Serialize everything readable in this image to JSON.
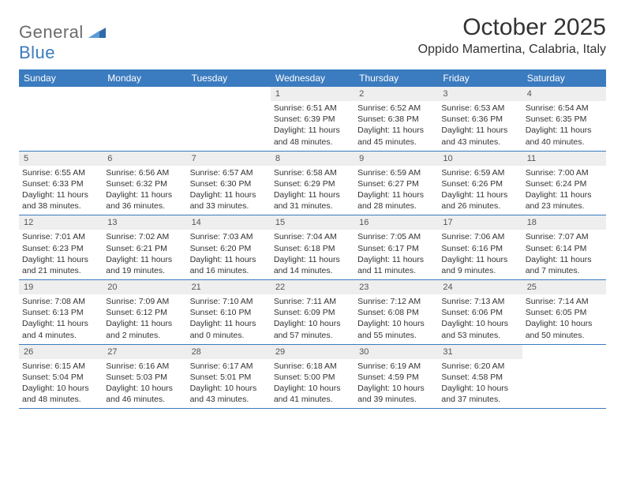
{
  "logo": {
    "word1": "General",
    "word2": "Blue"
  },
  "title": "October 2025",
  "location": "Oppido Mamertina, Calabria, Italy",
  "calendar": {
    "header_bg": "#3b7bbf",
    "header_fg": "#ffffff",
    "daynum_bg": "#eeeeee",
    "border_color": "#3b7bbf",
    "weekdays": [
      "Sunday",
      "Monday",
      "Tuesday",
      "Wednesday",
      "Thursday",
      "Friday",
      "Saturday"
    ],
    "weeks": [
      [
        {
          "day": "",
          "sunrise": "",
          "sunset": "",
          "daylight": ""
        },
        {
          "day": "",
          "sunrise": "",
          "sunset": "",
          "daylight": ""
        },
        {
          "day": "",
          "sunrise": "",
          "sunset": "",
          "daylight": ""
        },
        {
          "day": "1",
          "sunrise": "Sunrise: 6:51 AM",
          "sunset": "Sunset: 6:39 PM",
          "daylight": "Daylight: 11 hours and 48 minutes."
        },
        {
          "day": "2",
          "sunrise": "Sunrise: 6:52 AM",
          "sunset": "Sunset: 6:38 PM",
          "daylight": "Daylight: 11 hours and 45 minutes."
        },
        {
          "day": "3",
          "sunrise": "Sunrise: 6:53 AM",
          "sunset": "Sunset: 6:36 PM",
          "daylight": "Daylight: 11 hours and 43 minutes."
        },
        {
          "day": "4",
          "sunrise": "Sunrise: 6:54 AM",
          "sunset": "Sunset: 6:35 PM",
          "daylight": "Daylight: 11 hours and 40 minutes."
        }
      ],
      [
        {
          "day": "5",
          "sunrise": "Sunrise: 6:55 AM",
          "sunset": "Sunset: 6:33 PM",
          "daylight": "Daylight: 11 hours and 38 minutes."
        },
        {
          "day": "6",
          "sunrise": "Sunrise: 6:56 AM",
          "sunset": "Sunset: 6:32 PM",
          "daylight": "Daylight: 11 hours and 36 minutes."
        },
        {
          "day": "7",
          "sunrise": "Sunrise: 6:57 AM",
          "sunset": "Sunset: 6:30 PM",
          "daylight": "Daylight: 11 hours and 33 minutes."
        },
        {
          "day": "8",
          "sunrise": "Sunrise: 6:58 AM",
          "sunset": "Sunset: 6:29 PM",
          "daylight": "Daylight: 11 hours and 31 minutes."
        },
        {
          "day": "9",
          "sunrise": "Sunrise: 6:59 AM",
          "sunset": "Sunset: 6:27 PM",
          "daylight": "Daylight: 11 hours and 28 minutes."
        },
        {
          "day": "10",
          "sunrise": "Sunrise: 6:59 AM",
          "sunset": "Sunset: 6:26 PM",
          "daylight": "Daylight: 11 hours and 26 minutes."
        },
        {
          "day": "11",
          "sunrise": "Sunrise: 7:00 AM",
          "sunset": "Sunset: 6:24 PM",
          "daylight": "Daylight: 11 hours and 23 minutes."
        }
      ],
      [
        {
          "day": "12",
          "sunrise": "Sunrise: 7:01 AM",
          "sunset": "Sunset: 6:23 PM",
          "daylight": "Daylight: 11 hours and 21 minutes."
        },
        {
          "day": "13",
          "sunrise": "Sunrise: 7:02 AM",
          "sunset": "Sunset: 6:21 PM",
          "daylight": "Daylight: 11 hours and 19 minutes."
        },
        {
          "day": "14",
          "sunrise": "Sunrise: 7:03 AM",
          "sunset": "Sunset: 6:20 PM",
          "daylight": "Daylight: 11 hours and 16 minutes."
        },
        {
          "day": "15",
          "sunrise": "Sunrise: 7:04 AM",
          "sunset": "Sunset: 6:18 PM",
          "daylight": "Daylight: 11 hours and 14 minutes."
        },
        {
          "day": "16",
          "sunrise": "Sunrise: 7:05 AM",
          "sunset": "Sunset: 6:17 PM",
          "daylight": "Daylight: 11 hours and 11 minutes."
        },
        {
          "day": "17",
          "sunrise": "Sunrise: 7:06 AM",
          "sunset": "Sunset: 6:16 PM",
          "daylight": "Daylight: 11 hours and 9 minutes."
        },
        {
          "day": "18",
          "sunrise": "Sunrise: 7:07 AM",
          "sunset": "Sunset: 6:14 PM",
          "daylight": "Daylight: 11 hours and 7 minutes."
        }
      ],
      [
        {
          "day": "19",
          "sunrise": "Sunrise: 7:08 AM",
          "sunset": "Sunset: 6:13 PM",
          "daylight": "Daylight: 11 hours and 4 minutes."
        },
        {
          "day": "20",
          "sunrise": "Sunrise: 7:09 AM",
          "sunset": "Sunset: 6:12 PM",
          "daylight": "Daylight: 11 hours and 2 minutes."
        },
        {
          "day": "21",
          "sunrise": "Sunrise: 7:10 AM",
          "sunset": "Sunset: 6:10 PM",
          "daylight": "Daylight: 11 hours and 0 minutes."
        },
        {
          "day": "22",
          "sunrise": "Sunrise: 7:11 AM",
          "sunset": "Sunset: 6:09 PM",
          "daylight": "Daylight: 10 hours and 57 minutes."
        },
        {
          "day": "23",
          "sunrise": "Sunrise: 7:12 AM",
          "sunset": "Sunset: 6:08 PM",
          "daylight": "Daylight: 10 hours and 55 minutes."
        },
        {
          "day": "24",
          "sunrise": "Sunrise: 7:13 AM",
          "sunset": "Sunset: 6:06 PM",
          "daylight": "Daylight: 10 hours and 53 minutes."
        },
        {
          "day": "25",
          "sunrise": "Sunrise: 7:14 AM",
          "sunset": "Sunset: 6:05 PM",
          "daylight": "Daylight: 10 hours and 50 minutes."
        }
      ],
      [
        {
          "day": "26",
          "sunrise": "Sunrise: 6:15 AM",
          "sunset": "Sunset: 5:04 PM",
          "daylight": "Daylight: 10 hours and 48 minutes."
        },
        {
          "day": "27",
          "sunrise": "Sunrise: 6:16 AM",
          "sunset": "Sunset: 5:03 PM",
          "daylight": "Daylight: 10 hours and 46 minutes."
        },
        {
          "day": "28",
          "sunrise": "Sunrise: 6:17 AM",
          "sunset": "Sunset: 5:01 PM",
          "daylight": "Daylight: 10 hours and 43 minutes."
        },
        {
          "day": "29",
          "sunrise": "Sunrise: 6:18 AM",
          "sunset": "Sunset: 5:00 PM",
          "daylight": "Daylight: 10 hours and 41 minutes."
        },
        {
          "day": "30",
          "sunrise": "Sunrise: 6:19 AM",
          "sunset": "Sunset: 4:59 PM",
          "daylight": "Daylight: 10 hours and 39 minutes."
        },
        {
          "day": "31",
          "sunrise": "Sunrise: 6:20 AM",
          "sunset": "Sunset: 4:58 PM",
          "daylight": "Daylight: 10 hours and 37 minutes."
        },
        {
          "day": "",
          "sunrise": "",
          "sunset": "",
          "daylight": ""
        }
      ]
    ]
  }
}
